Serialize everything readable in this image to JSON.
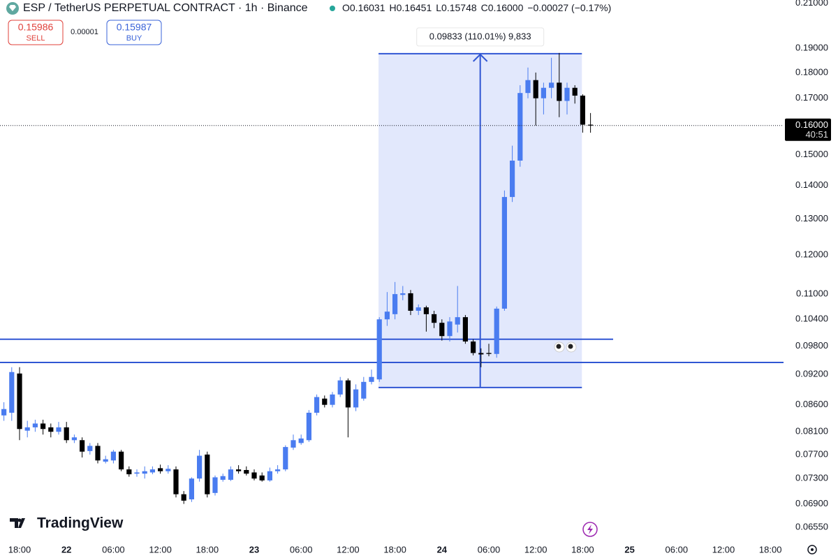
{
  "header": {
    "title": "ESP / TetherUS PERPETUAL CONTRACT · 1h · Binance",
    "ohlc": [
      {
        "label": "O",
        "value": "0.16031"
      },
      {
        "label": "H",
        "value": "0.16451"
      },
      {
        "label": "L",
        "value": "0.15748"
      },
      {
        "label": "C",
        "value": "0.16000"
      }
    ],
    "change": "−0.00027 (−0.17%)",
    "sell": {
      "price": "0.15986",
      "label": "SELL"
    },
    "spread": "0.00001",
    "buy": {
      "price": "0.15987",
      "label": "BUY"
    }
  },
  "branding": "TradingView",
  "chart_data": {
    "type": "candlestick",
    "log_scale": true,
    "up_color": "#4a7cf0",
    "down_color": "#000000",
    "line_color": "#3056d3",
    "categories": [
      null,
      null,
      "18:00",
      null,
      null,
      null,
      null,
      null,
      "22",
      null,
      null,
      null,
      null,
      null,
      "06:00",
      null,
      null,
      null,
      null,
      null,
      "12:00",
      null,
      null,
      null,
      null,
      null,
      "18:00",
      null,
      null,
      null,
      null,
      null,
      "23",
      null,
      null,
      null,
      null,
      null,
      "06:00",
      null,
      null,
      null,
      null,
      null,
      "12:00",
      null,
      null,
      null,
      null,
      null,
      "18:00",
      null,
      null,
      null,
      null,
      null,
      "24",
      null,
      null,
      null,
      null,
      null,
      "06:00",
      null,
      null,
      null,
      null,
      null,
      "12:00",
      null,
      null,
      null,
      null,
      null,
      "18:00",
      null,
      null,
      null,
      null,
      null,
      "25",
      null,
      null,
      null,
      null,
      null,
      "06:00",
      null,
      null,
      null,
      null,
      null,
      "12:00",
      null,
      null,
      null,
      null,
      null,
      "18:00"
    ],
    "open": [
      0.084,
      0.0845,
      0.0922,
      0.0812,
      0.0818,
      0.0825,
      0.0818,
      0.081,
      0.0818,
      0.0795,
      0.0795,
      0.0776,
      0.0785,
      0.0758,
      0.076,
      0.0775,
      0.0745,
      0.0738,
      0.0738,
      0.074,
      0.0747,
      0.0742,
      0.0745,
      0.0705,
      0.0697,
      0.073,
      0.077,
      0.0707,
      0.0728,
      0.0728,
      0.0745,
      0.0744,
      0.074,
      0.0735,
      0.0727,
      0.0742,
      0.0745,
      0.0782,
      0.079,
      0.0795,
      0.0845,
      0.0872,
      0.086,
      0.088,
      0.0908,
      0.0855,
      0.0872,
      0.0905,
      0.091,
      0.104,
      0.1052,
      0.1098,
      0.1102,
      0.106,
      0.1068,
      0.1052,
      0.1032,
      0.1002,
      0.1028,
      0.1045,
      0.099,
      0.0965,
      0.0965,
      0.0963,
      0.1065,
      0.1365,
      0.148,
      0.172,
      0.177,
      0.17,
      0.174,
      0.176,
      0.169,
      0.174,
      0.171,
      0.16031,
      null,
      null,
      null,
      null,
      null,
      null,
      null,
      null,
      null,
      null,
      null,
      null,
      null,
      null,
      null,
      null,
      null,
      null,
      null,
      null,
      null,
      null,
      null
    ],
    "high": [
      0.0865,
      0.0935,
      0.0935,
      0.083,
      0.0832,
      0.0832,
      0.0825,
      0.0828,
      0.0828,
      0.0805,
      0.08,
      0.079,
      0.079,
      0.0768,
      0.0778,
      0.0778,
      0.075,
      0.0745,
      0.075,
      0.075,
      0.0753,
      0.0752,
      0.075,
      0.071,
      0.0732,
      0.0778,
      0.0775,
      0.0735,
      0.0738,
      0.075,
      0.0752,
      0.075,
      0.0745,
      0.074,
      0.0748,
      0.0752,
      0.0786,
      0.0805,
      0.0805,
      0.085,
      0.088,
      0.0878,
      0.0885,
      0.0915,
      0.0912,
      0.09,
      0.0915,
      0.093,
      0.1045,
      0.1105,
      0.113,
      0.112,
      0.111,
      0.1075,
      0.1072,
      0.106,
      0.104,
      0.1045,
      0.112,
      0.105,
      0.0995,
      0.0975,
      0.0985,
      0.107,
      0.1385,
      0.153,
      0.175,
      0.182,
      0.18,
      0.176,
      0.186,
      0.188,
      0.176,
      0.175,
      0.1715,
      0.16451,
      null,
      null,
      null,
      null,
      null,
      null,
      null,
      null,
      null,
      null,
      null,
      null,
      null,
      null,
      null,
      null,
      null,
      null,
      null,
      null,
      null,
      null,
      null
    ],
    "low": [
      0.083,
      0.083,
      0.0795,
      0.08,
      0.081,
      0.0805,
      0.08,
      0.0805,
      0.079,
      0.079,
      0.0765,
      0.077,
      0.0755,
      0.0755,
      0.0755,
      0.0742,
      0.0733,
      0.0733,
      0.073,
      0.0737,
      0.0738,
      0.0738,
      0.07,
      0.069,
      0.0693,
      0.0725,
      0.07,
      0.0703,
      0.0725,
      0.0726,
      0.0738,
      0.0735,
      0.0727,
      0.0725,
      0.0725,
      0.0738,
      0.0742,
      0.0778,
      0.0787,
      0.0792,
      0.084,
      0.0855,
      0.0855,
      0.0875,
      0.08,
      0.0848,
      0.0868,
      0.09,
      0.0905,
      0.1025,
      0.104,
      0.1085,
      0.105,
      0.105,
      0.1012,
      0.102,
      0.0992,
      0.099,
      0.101,
      0.0985,
      0.096,
      0.0935,
      0.0958,
      0.0955,
      0.106,
      0.135,
      0.146,
      0.17,
      0.16,
      0.164,
      0.17,
      0.163,
      0.164,
      0.168,
      0.1575,
      0.15748,
      null,
      null,
      null,
      null,
      null,
      null,
      null,
      null,
      null,
      null,
      null,
      null,
      null,
      null,
      null,
      null,
      null,
      null,
      null,
      null,
      null,
      null,
      null
    ],
    "close": [
      0.0852,
      0.0925,
      0.0815,
      0.0818,
      0.0825,
      0.0815,
      0.081,
      0.0818,
      0.0795,
      0.08,
      0.0775,
      0.0785,
      0.076,
      0.0762,
      0.0775,
      0.0745,
      0.0737,
      0.074,
      0.0742,
      0.0745,
      0.0742,
      0.0746,
      0.0705,
      0.0695,
      0.073,
      0.0768,
      0.0705,
      0.0732,
      0.0734,
      0.0745,
      0.0742,
      0.0738,
      0.073,
      0.0727,
      0.0742,
      0.0745,
      0.0783,
      0.0795,
      0.0798,
      0.0845,
      0.0875,
      0.086,
      0.088,
      0.0908,
      0.0855,
      0.089,
      0.0905,
      0.0915,
      0.104,
      0.1058,
      0.11,
      0.1102,
      0.106,
      0.1068,
      0.1052,
      0.1032,
      0.1002,
      0.1035,
      0.1045,
      0.099,
      0.0965,
      0.0962,
      0.0963,
      0.1065,
      0.1365,
      0.148,
      0.172,
      0.177,
      0.17,
      0.174,
      0.176,
      0.169,
      0.174,
      0.171,
      0.1603,
      0.16,
      null,
      null,
      null,
      null,
      null,
      null,
      null,
      null,
      null,
      null,
      null,
      null,
      null,
      null,
      null,
      null,
      null,
      null,
      null,
      null,
      null,
      null,
      null
    ],
    "ylim": [
      0.064,
      0.2115
    ],
    "yticks": [
      {
        "value": 0.21,
        "label": "0.21000"
      },
      {
        "value": 0.19,
        "label": "0.19000"
      },
      {
        "value": 0.18,
        "label": "0.18000"
      },
      {
        "value": 0.17,
        "label": "0.17000"
      },
      {
        "value": 0.15,
        "label": "0.15000"
      },
      {
        "value": 0.14,
        "label": "0.14000"
      },
      {
        "value": 0.13,
        "label": "0.13000"
      },
      {
        "value": 0.12,
        "label": "0.12000"
      },
      {
        "value": 0.11,
        "label": "0.11000"
      },
      {
        "value": 0.104,
        "label": "0.10400"
      },
      {
        "value": 0.098,
        "label": "0.09800"
      },
      {
        "value": 0.092,
        "label": "0.09200"
      },
      {
        "value": 0.086,
        "label": "0.08600"
      },
      {
        "value": 0.081,
        "label": "0.08100"
      },
      {
        "value": 0.077,
        "label": "0.07700"
      },
      {
        "value": 0.073,
        "label": "0.07300"
      },
      {
        "value": 0.069,
        "label": "0.06900"
      },
      {
        "value": 0.0655,
        "label": "0.06550"
      }
    ],
    "last_price": {
      "value": 0.16,
      "label": "0.16000",
      "countdown": "40:51"
    },
    "horizontal_lines": [
      0.0995,
      0.0945
    ],
    "measure": {
      "low": 0.08938,
      "high": 0.18771,
      "label": "0.09833 (110.01%) 9,833"
    }
  }
}
